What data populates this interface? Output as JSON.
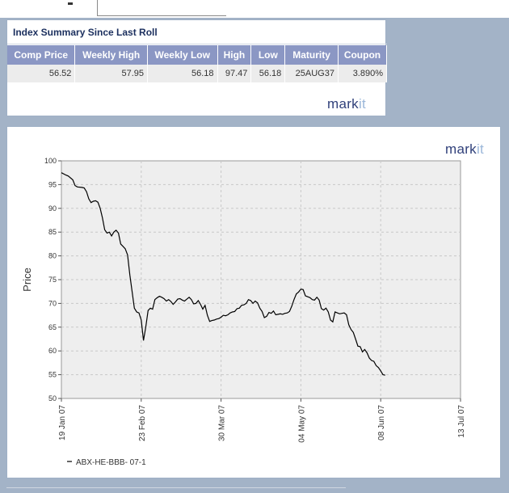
{
  "summary": {
    "title": "Index Summary Since Last Roll",
    "headers": [
      "Comp Price",
      "Weekly High",
      "Weekly Low",
      "High",
      "Low",
      "Maturity",
      "Coupon"
    ],
    "values": [
      "56.52",
      "57.95",
      "56.18",
      "97.47",
      "56.18",
      "25AUG37",
      "3.890%"
    ],
    "logo_main": "mark",
    "logo_accent": "it"
  },
  "chart_panel": {
    "logo_main": "mark",
    "logo_accent": "it"
  },
  "chart_data": {
    "type": "line",
    "title": "",
    "xlabel": "",
    "ylabel": "Price",
    "ylim": [
      50,
      100
    ],
    "yticks": [
      50,
      55,
      60,
      65,
      70,
      75,
      80,
      85,
      90,
      95,
      100
    ],
    "xticks": [
      {
        "label": "19 Jan 07",
        "day": 0
      },
      {
        "label": "23 Feb 07",
        "day": 35
      },
      {
        "label": "30 Mar 07",
        "day": 70
      },
      {
        "label": "04 May 07",
        "day": 105
      },
      {
        "label": "08 Jun 07",
        "day": 140
      },
      {
        "label": "13 Jul 07",
        "day": 175
      }
    ],
    "xlim_days": [
      0,
      175
    ],
    "grid": true,
    "legend_position": "bottom-left",
    "series": [
      {
        "name": "ABX-HE-BBB- 07-1",
        "color": "#000000",
        "points": [
          [
            0,
            97.5
          ],
          [
            2,
            97.0
          ],
          [
            3,
            96.8
          ],
          [
            5,
            96.0
          ],
          [
            6,
            94.8
          ],
          [
            7,
            94.5
          ],
          [
            9,
            94.4
          ],
          [
            10,
            94.3
          ],
          [
            11,
            93.5
          ],
          [
            12,
            92.0
          ],
          [
            13,
            91.2
          ],
          [
            14,
            91.5
          ],
          [
            15,
            91.6
          ],
          [
            16,
            91.3
          ],
          [
            17,
            90.0
          ],
          [
            18,
            88.0
          ],
          [
            19,
            85.5
          ],
          [
            20,
            84.8
          ],
          [
            21,
            85.0
          ],
          [
            22,
            84.2
          ],
          [
            23,
            85.0
          ],
          [
            24,
            85.4
          ],
          [
            25,
            84.8
          ],
          [
            26,
            82.5
          ],
          [
            27,
            82.0
          ],
          [
            28,
            81.5
          ],
          [
            29,
            80.2
          ],
          [
            30,
            76.0
          ],
          [
            31,
            72.5
          ],
          [
            32,
            69.0
          ],
          [
            33,
            68.2
          ],
          [
            34,
            68.0
          ],
          [
            35,
            66.5
          ],
          [
            36,
            62.2
          ],
          [
            37,
            65.0
          ],
          [
            38,
            68.5
          ],
          [
            39,
            69.0
          ],
          [
            40,
            68.8
          ],
          [
            41,
            70.8
          ],
          [
            42,
            71.2
          ],
          [
            43,
            71.5
          ],
          [
            44,
            71.3
          ],
          [
            45,
            71.0
          ],
          [
            46,
            70.5
          ],
          [
            47,
            70.8
          ],
          [
            48,
            70.4
          ],
          [
            49,
            69.8
          ],
          [
            50,
            70.3
          ],
          [
            51,
            70.9
          ],
          [
            52,
            71.0
          ],
          [
            53,
            70.7
          ],
          [
            54,
            70.5
          ],
          [
            55,
            70.9
          ],
          [
            56,
            71.3
          ],
          [
            57,
            70.8
          ],
          [
            58,
            69.9
          ],
          [
            59,
            70.0
          ],
          [
            60,
            70.6
          ],
          [
            61,
            69.8
          ],
          [
            62,
            68.8
          ],
          [
            63,
            69.6
          ],
          [
            64,
            67.5
          ],
          [
            65,
            66.2
          ],
          [
            66,
            66.4
          ],
          [
            67,
            66.5
          ],
          [
            68,
            66.7
          ],
          [
            69,
            66.8
          ],
          [
            70,
            67.1
          ],
          [
            71,
            67.5
          ],
          [
            72,
            67.4
          ],
          [
            73,
            67.6
          ],
          [
            74,
            68.0
          ],
          [
            75,
            68.2
          ],
          [
            76,
            68.3
          ],
          [
            77,
            68.9
          ],
          [
            78,
            69.0
          ],
          [
            79,
            69.6
          ],
          [
            80,
            69.7
          ],
          [
            81,
            70.0
          ],
          [
            82,
            70.8
          ],
          [
            83,
            70.6
          ],
          [
            84,
            70.0
          ],
          [
            85,
            70.5
          ],
          [
            86,
            70.1
          ],
          [
            87,
            69.0
          ],
          [
            88,
            68.3
          ],
          [
            89,
            67.0
          ],
          [
            90,
            67.3
          ],
          [
            91,
            68.1
          ],
          [
            92,
            67.9
          ],
          [
            93,
            68.4
          ],
          [
            94,
            67.6
          ],
          [
            95,
            67.7
          ],
          [
            96,
            67.8
          ],
          [
            97,
            67.7
          ],
          [
            98,
            67.9
          ],
          [
            99,
            68.0
          ],
          [
            100,
            68.3
          ],
          [
            101,
            69.4
          ],
          [
            102,
            70.8
          ],
          [
            103,
            72.0
          ],
          [
            104,
            72.4
          ],
          [
            105,
            73.0
          ],
          [
            106,
            72.9
          ],
          [
            107,
            71.6
          ],
          [
            108,
            71.4
          ],
          [
            109,
            71.2
          ],
          [
            110,
            70.8
          ],
          [
            111,
            70.7
          ],
          [
            112,
            71.3
          ],
          [
            113,
            70.7
          ],
          [
            114,
            68.9
          ],
          [
            115,
            68.6
          ],
          [
            116,
            69.0
          ],
          [
            117,
            68.2
          ],
          [
            118,
            66.5
          ],
          [
            119,
            66.1
          ],
          [
            120,
            68.2
          ],
          [
            121,
            68.0
          ],
          [
            122,
            67.8
          ],
          [
            123,
            67.9
          ],
          [
            124,
            68.0
          ],
          [
            125,
            67.6
          ],
          [
            126,
            65.5
          ],
          [
            127,
            64.5
          ],
          [
            128,
            63.9
          ],
          [
            129,
            62.5
          ],
          [
            130,
            61.0
          ],
          [
            131,
            60.9
          ],
          [
            132,
            59.8
          ],
          [
            133,
            60.3
          ],
          [
            134,
            59.6
          ],
          [
            135,
            58.5
          ],
          [
            136,
            58.0
          ],
          [
            137,
            57.8
          ],
          [
            138,
            56.9
          ],
          [
            139,
            56.5
          ],
          [
            140,
            55.8
          ],
          [
            141,
            55.0
          ],
          [
            142,
            54.9
          ]
        ]
      }
    ]
  }
}
